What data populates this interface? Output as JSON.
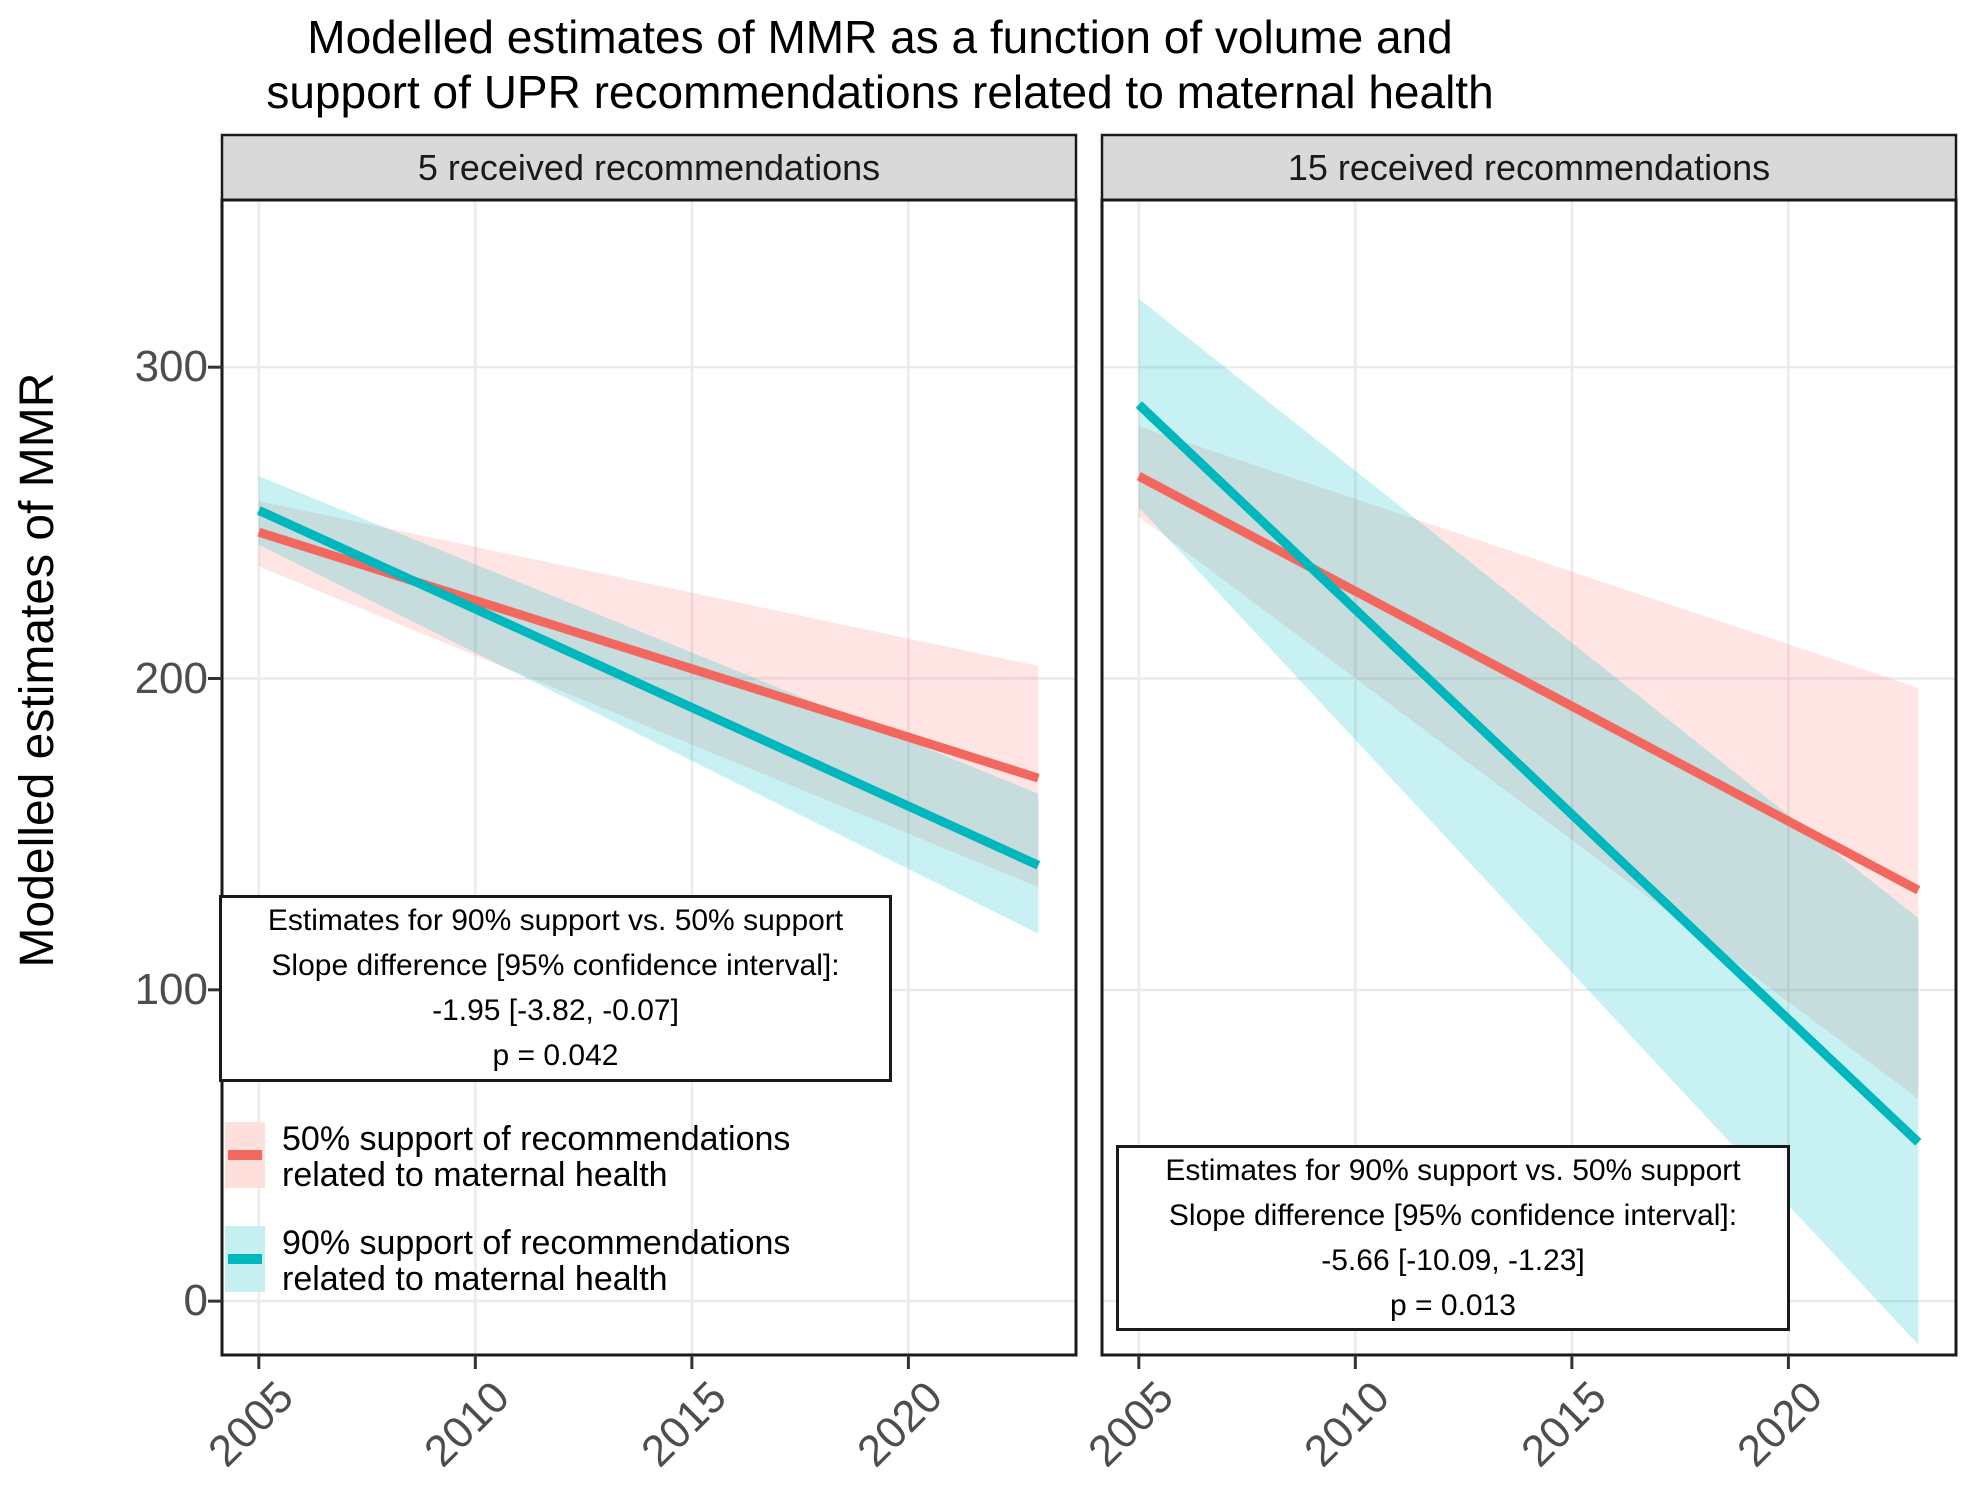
{
  "title": {
    "line1": "Modelled estimates of MMR as a function of volume and",
    "line2": "support of UPR recommendations related to maternal health"
  },
  "y_axis": {
    "label": "Modelled estimates of MMR",
    "ticks": [
      0,
      100,
      200,
      300
    ],
    "domain": [
      -17.3,
      353.7
    ]
  },
  "x_axis": {
    "ticks": [
      2005,
      2010,
      2015,
      2020
    ],
    "tick_labels": [
      "2005",
      "2010",
      "2015",
      "2020"
    ],
    "domain": [
      2004.15,
      2023.87
    ]
  },
  "style": {
    "background": "#FFFFFF",
    "grid_color": "#EBEBEB",
    "panel_border": "#1A1A1A",
    "strip_fill": "#D9D9D9",
    "axis_text_color": "#4D4D4D",
    "tick_color": "#333333"
  },
  "legend": {
    "entries": [
      {
        "label_line1": "50% support of recommendations",
        "label_line2": "related to maternal health",
        "line_color": "#F2685F",
        "fill_color": "#FDDFDC"
      },
      {
        "label_line1": "90% support of recommendations",
        "label_line2": "related to maternal health",
        "line_color": "#00B7BE",
        "fill_color": "#C6EFF1"
      }
    ]
  },
  "chart_data": {
    "type": "line",
    "x": [
      2005,
      2023
    ],
    "xlabel": "",
    "ylabel": "Modelled estimates of MMR",
    "ylim": [
      -17.3,
      353.7
    ],
    "grid": "major-only",
    "facets": [
      {
        "label": "5 received recommendations",
        "series": [
          {
            "name": "50% support of recommendations related to maternal health",
            "color": "#F2685F",
            "band_color": "#F8766D",
            "band_opacity": 0.19,
            "y": [
              247,
              168
            ],
            "ci_upper": [
              257,
              204
            ],
            "ci_lower": [
              236,
              133
            ]
          },
          {
            "name": "90% support of recommendations related to maternal health",
            "color": "#00B7BE",
            "band_color": "#00BFC4",
            "band_opacity": 0.22,
            "y": [
              254,
              140
            ],
            "ci_upper": [
              265,
              163
            ],
            "ci_lower": [
              243,
              118
            ]
          }
        ],
        "stats": {
          "comparison": "Estimates for 90% support vs. 50% support",
          "slope_difference": -1.95,
          "ci_95": [
            -3.82,
            -0.07
          ],
          "p_value": 0.042
        },
        "annotation": [
          "Estimates for 90% support vs. 50% support",
          "Slope difference [95% confidence interval]:",
          "-1.95 [-3.82, -0.07]",
          "p = 0.042"
        ]
      },
      {
        "label": "15 received recommendations",
        "series": [
          {
            "name": "50% support of recommendations related to maternal health",
            "color": "#F2685F",
            "band_color": "#F8766D",
            "band_opacity": 0.19,
            "y": [
              265,
              132
            ],
            "ci_upper": [
              281,
              197
            ],
            "ci_lower": [
              252,
              65
            ]
          },
          {
            "name": "90% support of recommendations related to maternal health",
            "color": "#00B7BE",
            "band_color": "#00BFC4",
            "band_opacity": 0.22,
            "y": [
              288,
              51
            ],
            "ci_upper": [
              322,
              123
            ],
            "ci_lower": [
              255,
              -14
            ]
          }
        ],
        "stats": {
          "comparison": "Estimates for 90% support vs. 50% support",
          "slope_difference": -5.66,
          "ci_95": [
            -10.09,
            -1.23
          ],
          "p_value": 0.013
        },
        "annotation": [
          "Estimates for 90% support vs. 50% support",
          "Slope difference [95% confidence interval]:",
          "-5.66 [-10.09, -1.23]",
          "p = 0.013"
        ]
      }
    ]
  }
}
